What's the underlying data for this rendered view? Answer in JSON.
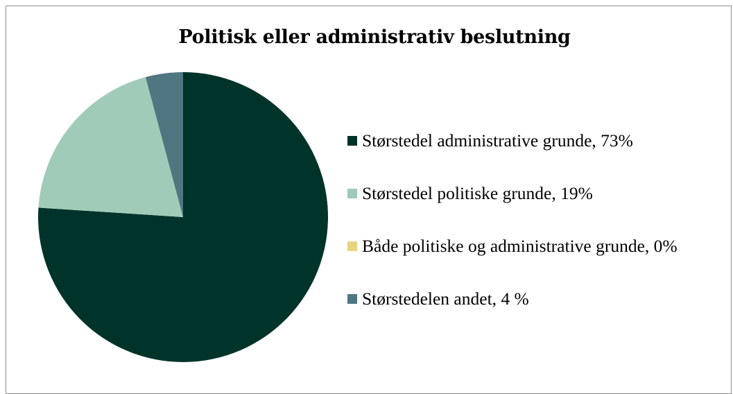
{
  "chart_data": {
    "type": "pie",
    "title": "Politisk eller administrativ beslutning",
    "categories": [
      "Størstedel administrative grunde, 73%",
      "Størstedel politiske grunde, 19%",
      "Både politiske og administrative grunde, 0%",
      "Størstedelen andet, 4 %"
    ],
    "values": [
      73,
      19,
      0,
      4
    ],
    "colors": [
      "#00332a",
      "#a1cbb9",
      "#e6d580",
      "#4f7681"
    ],
    "legend_position": "right",
    "start_angle": "12 o'clock, clockwise"
  }
}
